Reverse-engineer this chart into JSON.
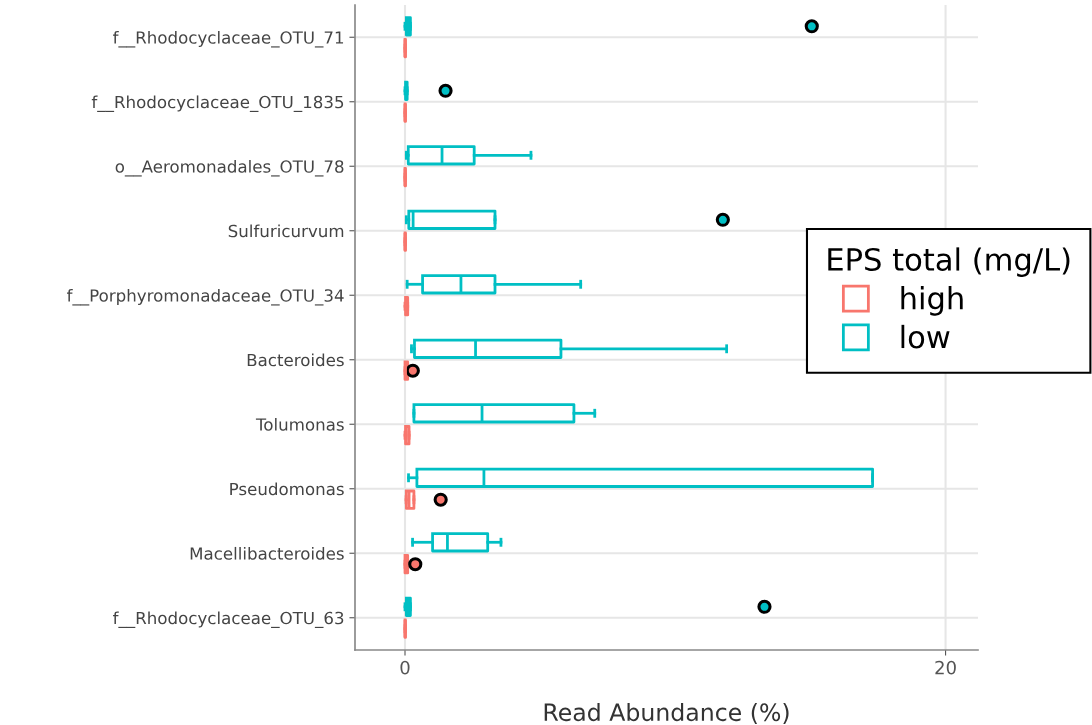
{
  "chart_data": {
    "type": "box",
    "orientation": "horizontal",
    "xlabel": "Read Abundance (%)",
    "legend_title": "EPS total (mg/L)",
    "legend": "right",
    "grid": true,
    "categories": [
      "f__Rhodocyclaceae_OTU_71",
      "f__Rhodocyclaceae_OTU_1835",
      "o__Aeromonadales_OTU_78",
      "Sulfuricurvum",
      "f__Porphyromonadaceae_OTU_34",
      "Bacteroides",
      "Tolumonas",
      "Pseudomonas",
      "Macellibacteroides",
      "f__Rhodocyclaceae_OTU_63"
    ],
    "xlim": [
      -1.85,
      21.2
    ],
    "xticks": [
      0,
      20
    ],
    "series": [
      {
        "name": "high",
        "color": "#f8766d",
        "boxes": [
          {
            "low": 0,
            "q1": 0,
            "median": 0,
            "q3": 0.02,
            "high": 0.02
          },
          {
            "low": 0,
            "q1": 0,
            "median": 0,
            "q3": 0.02,
            "high": 0.02
          },
          {
            "low": 0,
            "q1": 0,
            "median": 0,
            "q3": 0.02,
            "high": 0.02
          },
          {
            "low": 0,
            "q1": 0,
            "median": 0,
            "q3": 0.02,
            "high": 0.02
          },
          {
            "low": 0,
            "q1": 0.02,
            "median": 0.05,
            "q3": 0.1,
            "high": 0.1
          },
          {
            "low": 0,
            "q1": 0,
            "median": 0.02,
            "q3": 0.1,
            "high": 0.1,
            "outliers": [
              0.29
            ]
          },
          {
            "low": 0,
            "q1": 0.02,
            "median": 0.05,
            "q3": 0.15,
            "high": 0.15
          },
          {
            "low": 0.04,
            "q1": 0.05,
            "median": 0.15,
            "q3": 0.33,
            "high": 0.33,
            "outliers": [
              1.32
            ]
          },
          {
            "low": 0,
            "q1": 0,
            "median": 0.02,
            "q3": 0.1,
            "high": 0.1,
            "outliers": [
              0.38
            ]
          },
          {
            "low": 0,
            "q1": 0,
            "median": 0,
            "q3": 0.02,
            "high": 0.02
          }
        ]
      },
      {
        "name": "low",
        "color": "#00bfc4",
        "boxes": [
          {
            "low": 0,
            "q1": 0.05,
            "median": 0.1,
            "q3": 0.2,
            "high": 0.2,
            "outliers": [
              15.05
            ]
          },
          {
            "low": 0,
            "q1": 0.02,
            "median": 0.05,
            "q3": 0.08,
            "high": 0.08,
            "outliers": [
              1.5
            ]
          },
          {
            "low": 0.05,
            "q1": 0.12,
            "median": 1.37,
            "q3": 2.56,
            "high": 4.66
          },
          {
            "low": 0.05,
            "q1": 0.14,
            "median": 0.3,
            "q3": 3.33,
            "high": 3.33,
            "outliers": [
              11.76
            ]
          },
          {
            "low": 0.08,
            "q1": 0.65,
            "median": 2.07,
            "q3": 3.33,
            "high": 6.5
          },
          {
            "low": 0.24,
            "q1": 0.35,
            "median": 2.61,
            "q3": 5.77,
            "high": 11.9
          },
          {
            "low": 0.33,
            "q1": 0.33,
            "median": 2.85,
            "q3": 6.25,
            "high": 7.02
          },
          {
            "low": 0.13,
            "q1": 0.44,
            "median": 2.92,
            "q3": 17.3,
            "high": 17.3
          },
          {
            "low": 0.28,
            "q1": 1.02,
            "median": 1.57,
            "q3": 3.06,
            "high": 3.55
          },
          {
            "low": 0,
            "q1": 0.05,
            "median": 0.1,
            "q3": 0.2,
            "high": 0.2,
            "outliers": [
              13.3
            ]
          }
        ]
      }
    ]
  }
}
